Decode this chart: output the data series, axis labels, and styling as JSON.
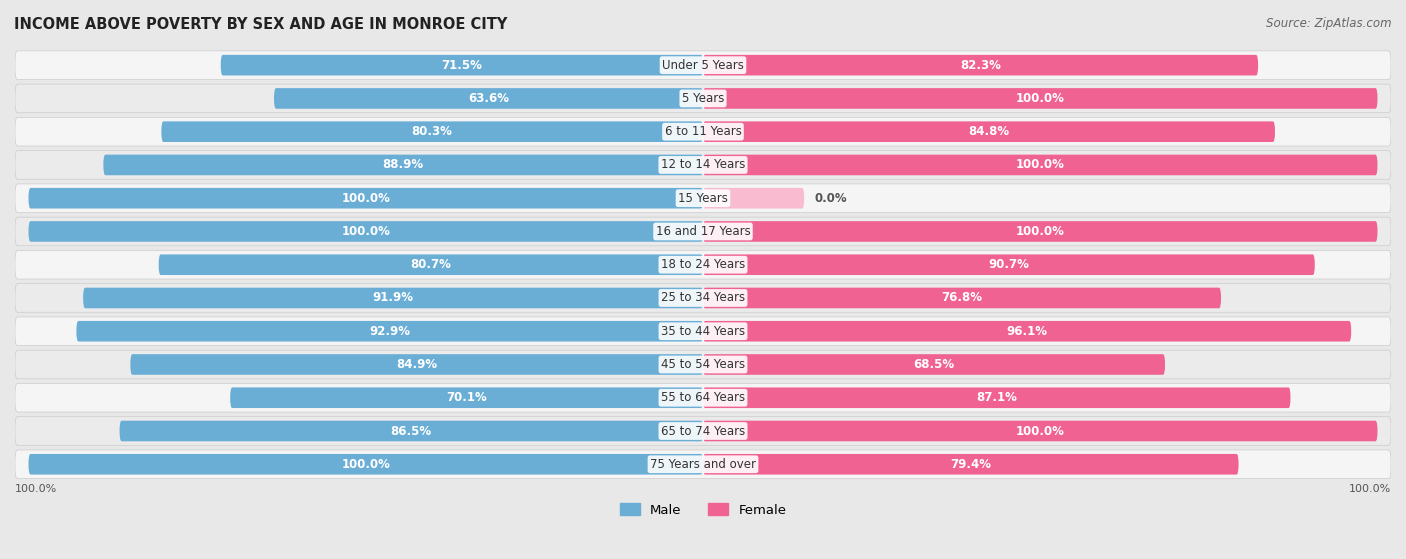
{
  "title": "INCOME ABOVE POVERTY BY SEX AND AGE IN MONROE CITY",
  "source": "Source: ZipAtlas.com",
  "categories": [
    "Under 5 Years",
    "5 Years",
    "6 to 11 Years",
    "12 to 14 Years",
    "15 Years",
    "16 and 17 Years",
    "18 to 24 Years",
    "25 to 34 Years",
    "35 to 44 Years",
    "45 to 54 Years",
    "55 to 64 Years",
    "65 to 74 Years",
    "75 Years and over"
  ],
  "male": [
    71.5,
    63.6,
    80.3,
    88.9,
    100.0,
    100.0,
    80.7,
    91.9,
    92.9,
    84.9,
    70.1,
    86.5,
    100.0
  ],
  "female": [
    82.3,
    100.0,
    84.8,
    100.0,
    0.0,
    100.0,
    90.7,
    76.8,
    96.1,
    68.5,
    87.1,
    100.0,
    79.4
  ],
  "male_color": "#6aaed6",
  "female_color": "#f06292",
  "female_zero_color": "#f8bbd0",
  "male_label": "Male",
  "female_label": "Female",
  "bg_color": "#e8e8e8",
  "row_bg_light": "#f0f0f0",
  "row_bg_dark": "#e0e0e0",
  "max_val": 100.0,
  "label_fontsize": 8.5,
  "title_fontsize": 10.5,
  "source_fontsize": 8.5,
  "cat_fontsize": 8.5
}
